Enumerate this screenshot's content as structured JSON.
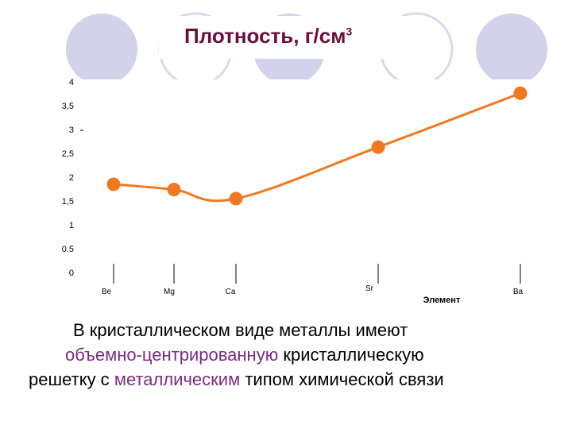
{
  "slide": {
    "title": "Плотность, г/см",
    "title_sup": "3"
  },
  "caption": {
    "line1": "В кристаллическом виде металлы имеют",
    "line2_highlight": "объемно-центрированную",
    "line2_rest": " кристаллическую",
    "line3_start": "решетку с ",
    "line3_highlight": "металлическим",
    "line3_end": " типом химической связи"
  },
  "colors": {
    "title": "#6b0f3a",
    "series": "#f07820",
    "highlight": "#7b2a84",
    "decor_fill": "#d2d2ea",
    "decor_stroke": "#d9d9ee"
  },
  "chart_data": {
    "type": "line",
    "title": "",
    "xlabel": "Элемент",
    "ylabel": "",
    "categories": [
      "Be",
      "Mg",
      "Ca",
      "Sr",
      "Ba"
    ],
    "series": [
      {
        "name": "",
        "values": [
          1.85,
          1.74,
          1.55,
          2.63,
          3.76
        ]
      }
    ],
    "ylim": [
      0,
      4
    ],
    "yticks": [
      "0",
      "0.5",
      "1",
      "1,5",
      "2",
      "2,5",
      "3",
      "3,5",
      "4"
    ],
    "grid": false,
    "legend": "none"
  }
}
